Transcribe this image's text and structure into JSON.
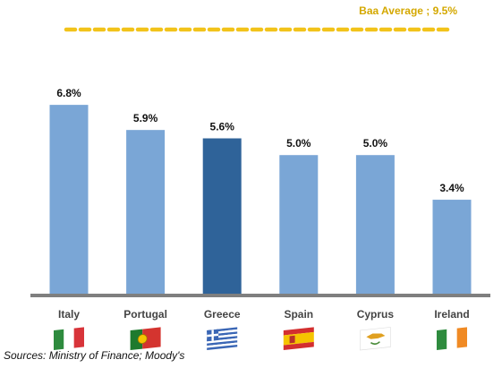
{
  "chart_data": {
    "type": "bar",
    "categories": [
      "Italy",
      "Portugal",
      "Greece",
      "Spain",
      "Cyprus",
      "Ireland"
    ],
    "values": [
      6.8,
      5.9,
      5.6,
      5.0,
      5.0,
      3.4
    ],
    "data_labels": [
      "6.8%",
      "5.9%",
      "5.6%",
      "5.0%",
      "5.0%",
      "3.4%"
    ],
    "highlight_category": "Greece",
    "colors": {
      "default_bar": "#7aa6d6",
      "highlight_bar": "#2f6399",
      "reference_line": "#f2c31a",
      "baseline": "#7f7f7f"
    },
    "ylim": [
      0,
      9.5
    ],
    "reference_line": {
      "label": "Baa Average ; 9.5%",
      "value": 9.5
    },
    "flags": [
      {
        "country": "Italy",
        "icon": "italy-flag-icon",
        "colors": [
          "#2e8b3e",
          "#ffffff",
          "#d8343a"
        ]
      },
      {
        "country": "Portugal",
        "icon": "portugal-flag-icon",
        "colors": [
          "#1e7a2e",
          "#d4342f"
        ]
      },
      {
        "country": "Greece",
        "icon": "greece-flag-icon",
        "colors": [
          "#3a66b5",
          "#ffffff"
        ]
      },
      {
        "country": "Spain",
        "icon": "spain-flag-icon",
        "colors": [
          "#d32f2f",
          "#f5c400"
        ]
      },
      {
        "country": "Cyprus",
        "icon": "cyprus-flag-icon",
        "colors": [
          "#ffffff",
          "#e0a020",
          "#4a8c3a"
        ]
      },
      {
        "country": "Ireland",
        "icon": "ireland-flag-icon",
        "colors": [
          "#2e8b3e",
          "#ffffff",
          "#f08a24"
        ]
      }
    ],
    "source": "Sources: Ministry of Finance; Moody's"
  }
}
